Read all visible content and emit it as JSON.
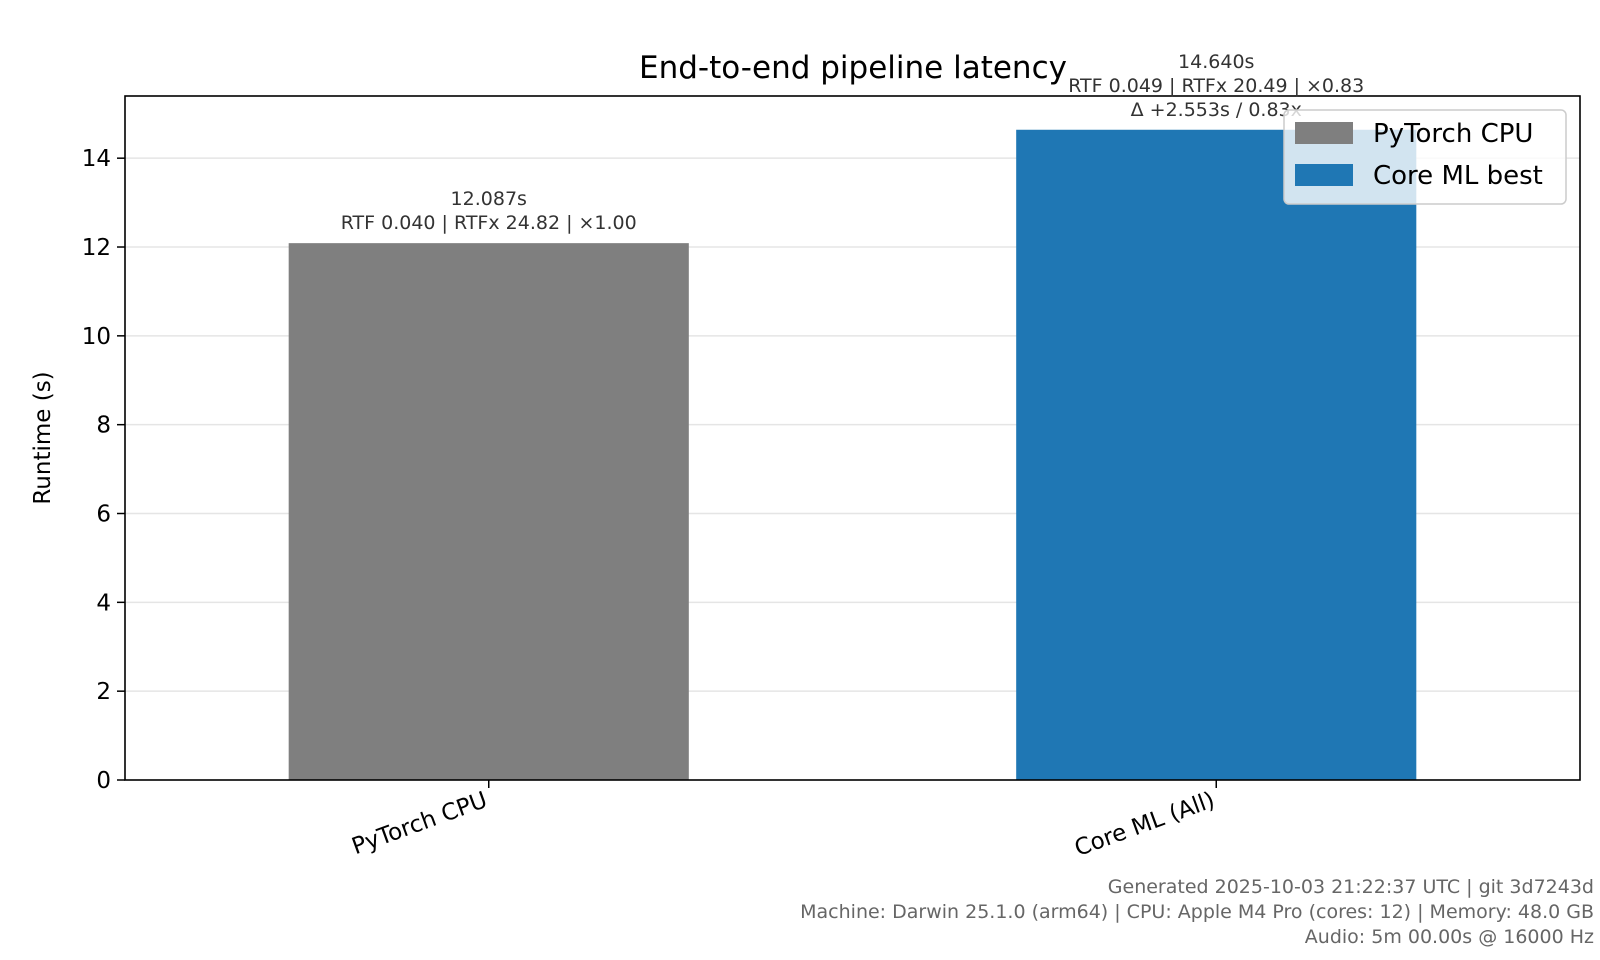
{
  "chart_data": {
    "type": "bar",
    "title": "End-to-end pipeline latency",
    "xlabel": "",
    "ylabel": "Runtime (s)",
    "ylim": [
      0,
      15.4
    ],
    "yticks": [
      "0",
      "2",
      "4",
      "6",
      "8",
      "10",
      "12",
      "14"
    ],
    "grid": "horizontal",
    "legend_position": "top-right",
    "categories": [
      "PyTorch CPU",
      "Core ML (All)"
    ],
    "values": [
      12.087,
      14.64
    ],
    "colors": [
      "#7f7f7f",
      "#1f77b4"
    ],
    "annotations": [
      [
        "12.087s",
        "RTF 0.040 | RTFx 24.82 | ×1.00"
      ],
      [
        "14.640s",
        "RTF 0.049 | RTFx 20.49 | ×0.83",
        "Δ +2.553s / 0.83x"
      ]
    ],
    "legend": [
      {
        "label": "PyTorch CPU",
        "color": "#7f7f7f"
      },
      {
        "label": "Core ML best",
        "color": "#1f77b4"
      }
    ]
  },
  "footer": {
    "line1": "Generated 2025-10-03 21:22:37 UTC | git 3d7243d",
    "line2": "Machine: Darwin 25.1.0 (arm64) | CPU: Apple M4 Pro (cores: 12) | Memory: 48.0 GB",
    "line3": "Audio: 5m 00.00s @ 16000 Hz"
  }
}
